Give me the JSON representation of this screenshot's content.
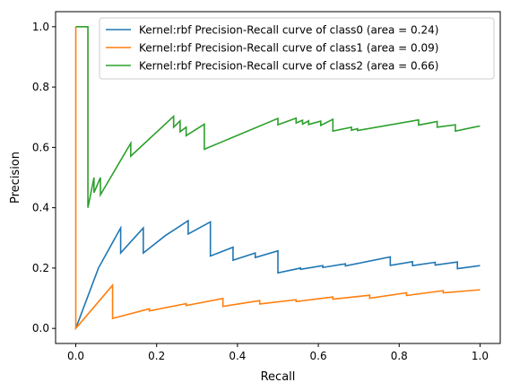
{
  "chart_data": {
    "type": "line",
    "title": "",
    "xlabel": "Recall",
    "ylabel": "Precision",
    "xlim": [
      -0.05,
      1.05
    ],
    "ylim": [
      -0.05,
      1.05
    ],
    "xticks": [
      0.0,
      0.2,
      0.4,
      0.6,
      0.8,
      1.0
    ],
    "xtick_labels": [
      "0.0",
      "0.2",
      "0.4",
      "0.6",
      "0.8",
      "1.0"
    ],
    "yticks": [
      0.0,
      0.2,
      0.4,
      0.6,
      0.8,
      1.0
    ],
    "ytick_labels": [
      "0.0",
      "0.2",
      "0.4",
      "0.6",
      "0.8",
      "1.0"
    ],
    "grid": false,
    "legend_position": "top-right",
    "series": [
      {
        "name": "Kernel:rbf Precision-Recall curve of class0 (area = 0.24)",
        "color": "#1f77b4",
        "x": [
          0.0,
          0.056,
          0.111,
          0.111,
          0.167,
          0.167,
          0.222,
          0.278,
          0.278,
          0.333,
          0.333,
          0.389,
          0.389,
          0.444,
          0.444,
          0.5,
          0.5,
          0.556,
          0.556,
          0.611,
          0.611,
          0.667,
          0.667,
          0.778,
          0.778,
          0.833,
          0.833,
          0.889,
          0.889,
          0.944,
          0.944,
          1.0
        ],
        "y": [
          0.0,
          0.2,
          0.333,
          0.25,
          0.333,
          0.25,
          0.308,
          0.357,
          0.313,
          0.353,
          0.24,
          0.269,
          0.226,
          0.25,
          0.235,
          0.257,
          0.184,
          0.2,
          0.196,
          0.208,
          0.202,
          0.214,
          0.207,
          0.237,
          0.209,
          0.221,
          0.208,
          0.219,
          0.21,
          0.22,
          0.198,
          0.208
        ]
      },
      {
        "name": "Kernel:rbf Precision-Recall curve of class1 (area = 0.09)",
        "color": "#ff7f0e",
        "x": [
          0.0,
          0.0,
          0.0,
          0.091,
          0.091,
          0.182,
          0.182,
          0.273,
          0.273,
          0.364,
          0.364,
          0.455,
          0.455,
          0.545,
          0.545,
          0.636,
          0.636,
          0.727,
          0.727,
          0.818,
          0.818,
          0.909,
          0.909,
          1.0
        ],
        "y": [
          1.0,
          0.0,
          0.0,
          0.143,
          0.033,
          0.065,
          0.058,
          0.082,
          0.076,
          0.099,
          0.073,
          0.092,
          0.081,
          0.095,
          0.089,
          0.104,
          0.097,
          0.11,
          0.1,
          0.118,
          0.109,
          0.125,
          0.118,
          0.128
        ]
      },
      {
        "name": "Kernel:rbf Precision-Recall curve of class2 (area = 0.66)",
        "color": "#2ca02c",
        "x": [
          0.0,
          0.03,
          0.03,
          0.045,
          0.045,
          0.061,
          0.061,
          0.136,
          0.136,
          0.242,
          0.242,
          0.258,
          0.258,
          0.273,
          0.273,
          0.318,
          0.318,
          0.5,
          0.5,
          0.545,
          0.545,
          0.561,
          0.561,
          0.576,
          0.576,
          0.606,
          0.606,
          0.636,
          0.636,
          0.682,
          0.682,
          0.697,
          0.697,
          0.848,
          0.848,
          0.894,
          0.894,
          0.939,
          0.939,
          0.985,
          1.0
        ],
        "y": [
          1.0,
          1.0,
          0.4,
          0.5,
          0.45,
          0.5,
          0.443,
          0.614,
          0.571,
          0.703,
          0.667,
          0.688,
          0.652,
          0.667,
          0.639,
          0.677,
          0.594,
          0.696,
          0.675,
          0.697,
          0.681,
          0.69,
          0.677,
          0.688,
          0.676,
          0.687,
          0.673,
          0.693,
          0.654,
          0.667,
          0.657,
          0.662,
          0.656,
          0.691,
          0.674,
          0.686,
          0.667,
          0.675,
          0.654,
          0.667,
          0.671
        ]
      }
    ]
  }
}
